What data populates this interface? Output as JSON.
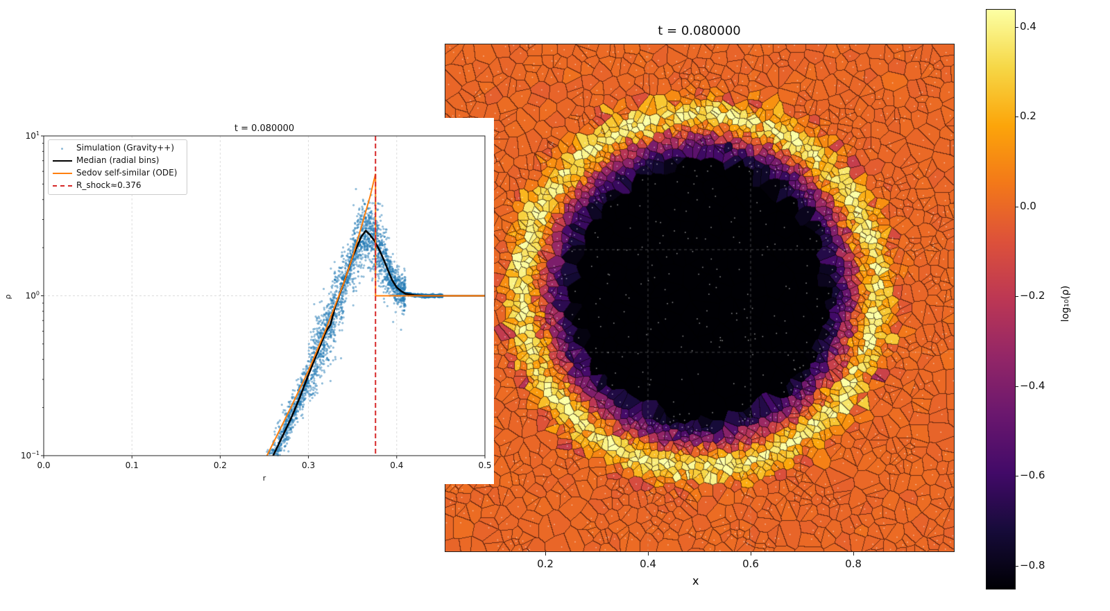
{
  "chart_data": [
    {
      "type": "scatter",
      "title": "t = 0.080000",
      "xlabel": "r",
      "ylabel": "ρ",
      "xlim": [
        0.0,
        0.5
      ],
      "ylim": [
        0.1,
        10
      ],
      "yscale": "log",
      "grid": true,
      "legend_placement": "top-left",
      "xticks": [
        "0.0",
        "0.1",
        "0.2",
        "0.3",
        "0.4",
        "0.5"
      ],
      "yticks": [
        "10^1",
        "10^0",
        "10^-1"
      ],
      "series": [
        {
          "name": "Simulation (Gravity++)",
          "kind": "scatter",
          "color": "#1f77b4",
          "description_values": "particle densities scattered around the median"
        },
        {
          "name": "Median (radial bins)",
          "kind": "line",
          "color": "#000000",
          "x": [
            0.26,
            0.27,
            0.28,
            0.29,
            0.3,
            0.31,
            0.32,
            0.325,
            0.33,
            0.34,
            0.35,
            0.36,
            0.365,
            0.37,
            0.375,
            0.38,
            0.385,
            0.39,
            0.395,
            0.4,
            0.405,
            0.41,
            0.42,
            0.43,
            0.45,
            0.5
          ],
          "y": [
            0.1,
            0.13,
            0.17,
            0.23,
            0.32,
            0.44,
            0.6,
            0.66,
            0.85,
            1.2,
            1.75,
            2.35,
            2.55,
            2.4,
            2.2,
            1.95,
            1.7,
            1.45,
            1.25,
            1.13,
            1.07,
            1.03,
            1.01,
            1.0,
            1.0,
            1.0
          ]
        },
        {
          "name": "Sedov self-similar (ODE)",
          "kind": "line",
          "color": "#ff7f0e",
          "x": [
            0.253,
            0.28,
            0.3,
            0.32,
            0.34,
            0.35,
            0.36,
            0.37,
            0.376,
            0.376,
            0.5
          ],
          "y": [
            0.1,
            0.2,
            0.34,
            0.62,
            1.2,
            1.75,
            2.7,
            4.2,
            5.8,
            1.0,
            1.0
          ]
        },
        {
          "name": "R_shock≈0.376",
          "kind": "vline",
          "color": "#d62728",
          "x": 0.376
        }
      ]
    },
    {
      "type": "heatmap",
      "title": "t = 0.080000",
      "xlabel": "x",
      "xticks": [
        "0.2",
        "0.4",
        "0.6",
        "0.8"
      ],
      "colormap": "inferno",
      "colorbar_label": "log10(ρ)",
      "colorbar_range": [
        -0.85,
        0.44
      ],
      "colorbar_ticks": [
        "0.4",
        "0.2",
        "0.0",
        "−0.2",
        "−0.4",
        "−0.6",
        "−0.8"
      ],
      "description_values": "Voronoi cells: dark low-density interior (log10 ρ ≈ −0.8) inside r≈0.28, purple band, bright yellow shell near r≈0.35, orange ambient (log10 ρ ≈ 0) outside"
    }
  ],
  "labels": {
    "left_title": "t = 0.080000",
    "left_xlabel": "r",
    "left_ylabel": "ρ",
    "legend": [
      "Simulation (Gravity++)",
      "Median (radial bins)",
      "Sedov self-similar (ODE)",
      "R_shock≈0.376"
    ],
    "right_title": "t = 0.080000",
    "right_xlabel": "x",
    "cb_label": "log₁₀(ρ)"
  }
}
